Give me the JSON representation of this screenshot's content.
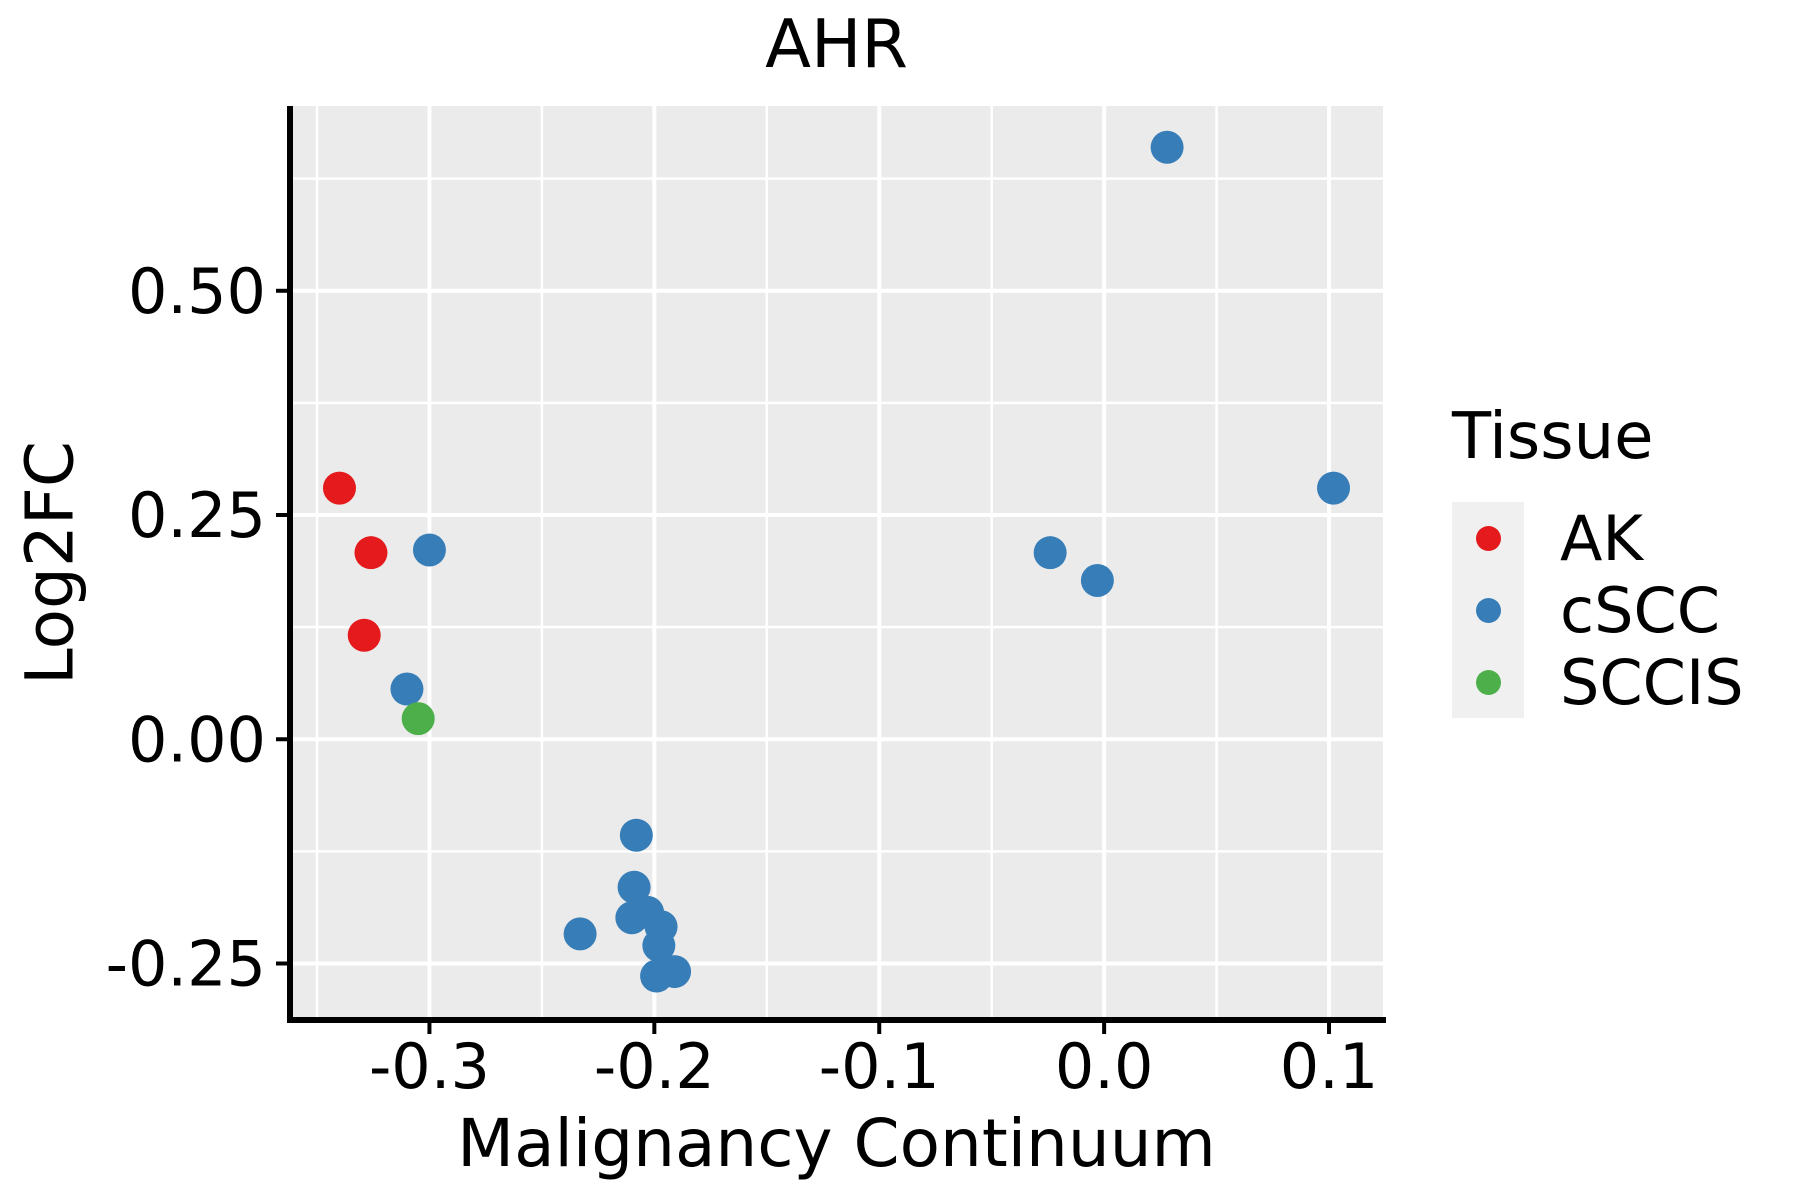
{
  "chart_data": {
    "type": "scatter",
    "title": "AHR",
    "xlabel": "Malignancy Continuum",
    "ylabel": "Log2FC",
    "legend_title": "Tissue",
    "legend_position": "right",
    "grid": true,
    "panel_bg": "#EBEBEB",
    "gridline_color": "#FFFFFF",
    "axis_color": "#000000",
    "xlim": [
      -0.362,
      0.124
    ],
    "ylim": [
      -0.313,
      0.706
    ],
    "x_major_ticks": [
      -0.3,
      -0.2,
      -0.1,
      0.0,
      0.1
    ],
    "x_tick_labels": [
      "-0.3",
      "-0.2",
      "-0.1",
      "0.0",
      "0.1"
    ],
    "x_minor_ticks": [
      -0.35,
      -0.25,
      -0.15,
      -0.05,
      0.05
    ],
    "y_major_ticks": [
      0.5,
      0.25,
      0.0,
      -0.25
    ],
    "y_tick_labels": [
      "0.50",
      "0.25",
      "0.00",
      "-0.25"
    ],
    "y_minor_ticks": [
      0.625,
      0.375,
      0.125,
      -0.125
    ],
    "series": [
      {
        "name": "AK",
        "color": "#E41A1C",
        "points": [
          [
            -0.34,
            0.28
          ],
          [
            -0.326,
            0.208
          ],
          [
            -0.329,
            0.116
          ]
        ]
      },
      {
        "name": "cSCC",
        "color": "#377EB8",
        "points": [
          [
            -0.3,
            0.211
          ],
          [
            -0.31,
            0.056
          ],
          [
            0.028,
            0.66
          ],
          [
            -0.024,
            0.208
          ],
          [
            -0.003,
            0.177
          ],
          [
            0.102,
            0.28
          ],
          [
            -0.208,
            -0.107
          ],
          [
            -0.209,
            -0.165
          ],
          [
            -0.21,
            -0.199
          ],
          [
            -0.203,
            -0.193
          ],
          [
            -0.197,
            -0.209
          ],
          [
            -0.233,
            -0.217
          ],
          [
            -0.198,
            -0.23
          ],
          [
            -0.199,
            -0.264
          ],
          [
            -0.191,
            -0.259
          ]
        ]
      },
      {
        "name": "SCCIS",
        "color": "#4DAF4A",
        "points": [
          [
            -0.305,
            0.023
          ]
        ]
      }
    ]
  }
}
